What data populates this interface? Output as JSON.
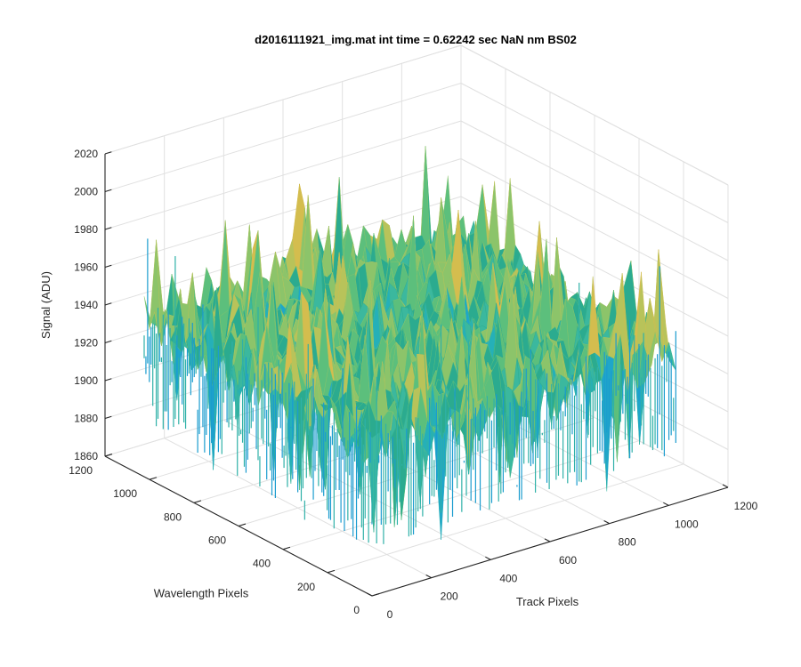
{
  "chart_data": {
    "type": "surface",
    "title": "d2016111921_img.mat int time = 0.62242 sec  NaN nm BS02",
    "xlabel": "Track Pixels",
    "ylabel": "Wavelength Pixels",
    "zlabel": "Signal (ADU)",
    "xlim": [
      0,
      1200
    ],
    "ylim": [
      0,
      1200
    ],
    "zlim": [
      1860,
      2020
    ],
    "x_ticks": [
      0,
      200,
      400,
      600,
      800,
      1000,
      1200
    ],
    "y_ticks": [
      0,
      200,
      400,
      600,
      800,
      1000,
      1200
    ],
    "z_ticks": [
      1860,
      1880,
      1900,
      1920,
      1940,
      1960,
      1980,
      2000,
      2020
    ],
    "x_tick_labels": [
      "0",
      "200",
      "400",
      "600",
      "800",
      "1000",
      "1200"
    ],
    "y_tick_labels": [
      "0",
      "200",
      "400",
      "600",
      "800",
      "1000",
      "1200"
    ],
    "z_tick_labels": [
      "1860",
      "1880",
      "1900",
      "1920",
      "1940",
      "1960",
      "1980",
      "2000",
      "2020"
    ],
    "data_extent": {
      "x": [
        0,
        1024
      ],
      "y": [
        0,
        1024
      ]
    },
    "signal_mean": 1942,
    "signal_noise_range": [
      1875,
      1995
    ],
    "grid": true,
    "colormap": "parula",
    "view": "az -37.5, el 30"
  }
}
